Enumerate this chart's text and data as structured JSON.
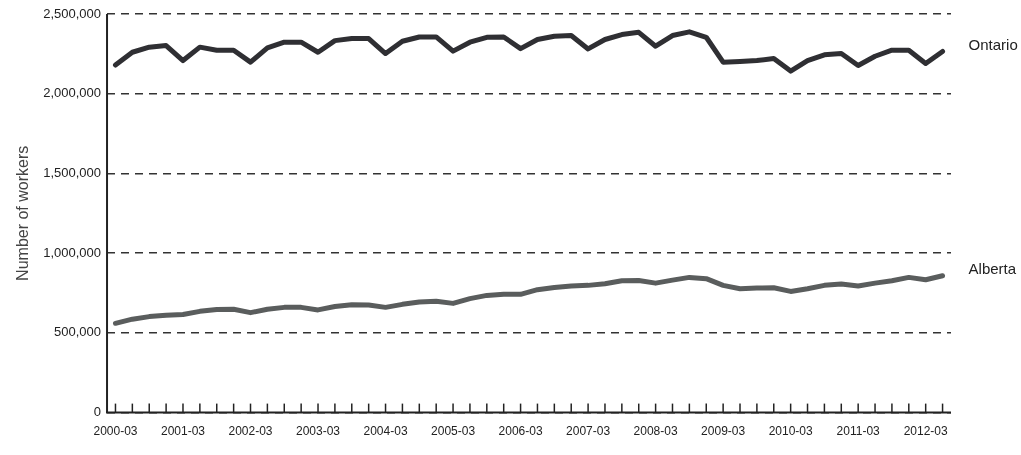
{
  "chart_data": {
    "type": "line",
    "ylabel": "Number of workers",
    "categories": [
      "2000-03",
      null,
      null,
      null,
      "2001-03",
      null,
      null,
      null,
      "2002-03",
      null,
      null,
      null,
      "2003-03",
      null,
      null,
      null,
      "2004-03",
      null,
      null,
      null,
      "2005-03",
      null,
      null,
      null,
      "2006-03",
      null,
      null,
      null,
      "2007-03",
      null,
      null,
      null,
      "2008-03",
      null,
      null,
      null,
      "2009-03",
      null,
      null,
      null,
      "2010-03",
      null,
      null,
      null,
      "2011-03",
      null,
      null,
      null,
      "2012-03",
      null
    ],
    "series": [
      {
        "name": "Ontario",
        "color": "#2f2f33",
        "values": [
          2180000,
          2260000,
          2292000,
          2302000,
          2208000,
          2292000,
          2273000,
          2273000,
          2198000,
          2287000,
          2323000,
          2323000,
          2260000,
          2333000,
          2346000,
          2346000,
          2252000,
          2329000,
          2356000,
          2356000,
          2267000,
          2323000,
          2354000,
          2356000,
          2283000,
          2340000,
          2360000,
          2365000,
          2281000,
          2340000,
          2371000,
          2385000,
          2298000,
          2365000,
          2388000,
          2354000,
          2198000,
          2202000,
          2208000,
          2221000,
          2142000,
          2208000,
          2244000,
          2252000,
          2177000,
          2235000,
          2273000,
          2273000,
          2190000,
          2265000
        ]
      },
      {
        "name": "Alberta",
        "color": "#5a5d5d",
        "values": [
          560000,
          586000,
          602000,
          610000,
          615000,
          635000,
          646000,
          648000,
          627000,
          648000,
          660000,
          660000,
          644000,
          665000,
          677000,
          675000,
          660000,
          679000,
          694000,
          698000,
          685000,
          715000,
          735000,
          742000,
          742000,
          771000,
          785000,
          794000,
          798000,
          808000,
          827000,
          829000,
          812000,
          831000,
          848000,
          840000,
          798000,
          777000,
          781000,
          783000,
          760000,
          777000,
          798000,
          806000,
          794000,
          812000,
          827000,
          848000,
          833000,
          858000
        ]
      }
    ],
    "ylim": [
      0,
      2500000
    ],
    "yticks": [
      0,
      {
        "value": 500000,
        "label": "500,000"
      },
      {
        "value": 1000000,
        "label": "1,000,000"
      },
      {
        "value": 1500000,
        "label": "1,500,000"
      },
      {
        "value": 2000000,
        "label": "2,000,000"
      },
      {
        "value": 2500000,
        "label": "2,500,000"
      }
    ],
    "grid": "y",
    "legend": false,
    "marker": "none",
    "line_style": "solid"
  }
}
